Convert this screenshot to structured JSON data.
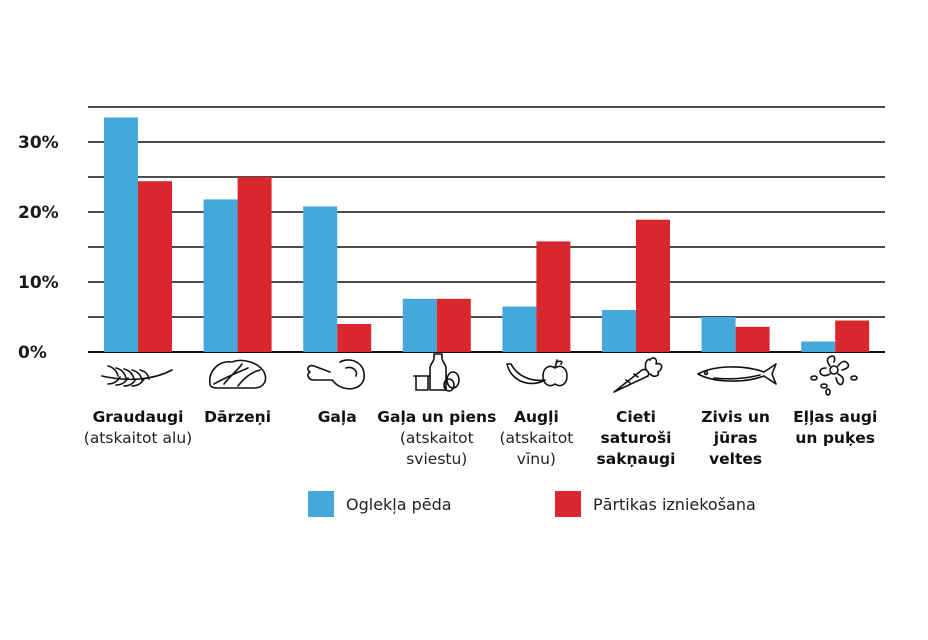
{
  "chart_data": {
    "type": "bar",
    "title": "",
    "xlabel": "",
    "ylabel": "",
    "ylim": [
      0,
      35
    ],
    "yticks": [
      0,
      10,
      20,
      30
    ],
    "ytick_labels": [
      "0%",
      "10%",
      "20%",
      "30%"
    ],
    "grid": "horizontal lines every 5%",
    "legend_position": "bottom",
    "categories": [
      {
        "title": "Graudaugi",
        "sub": [
          "(atskaitot alu)"
        ],
        "icon": "wheat-icon"
      },
      {
        "title": "Dārzeņi",
        "sub": [],
        "icon": "lettuce-icon"
      },
      {
        "title": "Gaļa",
        "sub": [],
        "icon": "ham-leg-icon"
      },
      {
        "title": "Gaļa un piens",
        "sub": [
          "(atskaitot",
          "sviestu)"
        ],
        "icon": "dairy-icon"
      },
      {
        "title": "Augļi",
        "sub": [
          "(atskaitot",
          "vīnu)"
        ],
        "icon": "fruit-icon"
      },
      {
        "title": "Cieti",
        "title2": "saturoši",
        "title3": "sakņaugi",
        "sub": [],
        "icon": "carrot-icon"
      },
      {
        "title": "Zivis un",
        "title2": "jūras",
        "title3": "veltes",
        "sub": [],
        "icon": "fish-icon"
      },
      {
        "title": "Eļļas augi",
        "title2": "un puķes",
        "sub": [],
        "icon": "seeds-icon"
      }
    ],
    "series": [
      {
        "name": "Oglekļa pēda",
        "color": "#45a8dc",
        "values": [
          33.5,
          21.8,
          20.8,
          7.6,
          6.5,
          6.0,
          5.0,
          1.5
        ]
      },
      {
        "name": "Pārtikas izniekošana",
        "color": "#d9272e",
        "values": [
          24.4,
          25.0,
          4.0,
          7.6,
          15.8,
          18.9,
          3.6,
          4.5
        ]
      }
    ]
  }
}
